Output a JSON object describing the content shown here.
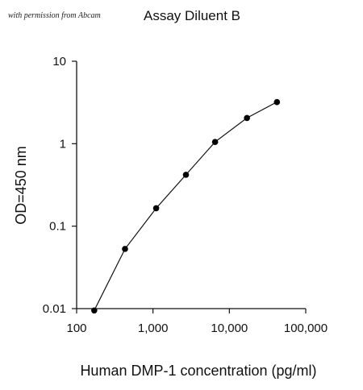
{
  "permission_note": "with permission from Abcam",
  "chart_data": {
    "type": "line",
    "title": "Assay Diluent B",
    "xlabel": "Human DMP-1 concentration (pg/ml)",
    "ylabel": "OD=450 nm",
    "x_scale": "log",
    "y_scale": "log",
    "xlim": [
      100,
      100000
    ],
    "ylim": [
      0.01,
      10
    ],
    "x_ticks": [
      100,
      1000,
      10000,
      100000
    ],
    "x_tick_labels": [
      "100",
      "1,000",
      "10,000",
      "100,000"
    ],
    "y_ticks": [
      0.01,
      0.1,
      1,
      10
    ],
    "y_tick_labels": [
      "0.01",
      "0.1",
      "1",
      "10"
    ],
    "grid": false,
    "series": [
      {
        "x": [
          170,
          430,
          1100,
          2700,
          6500,
          17000,
          42000
        ],
        "y": [
          0.0095,
          0.053,
          0.165,
          0.42,
          1.05,
          2.05,
          3.2
        ]
      }
    ],
    "colors": {
      "line": "#111111",
      "marker": "#000000",
      "axis": "#111111"
    }
  }
}
